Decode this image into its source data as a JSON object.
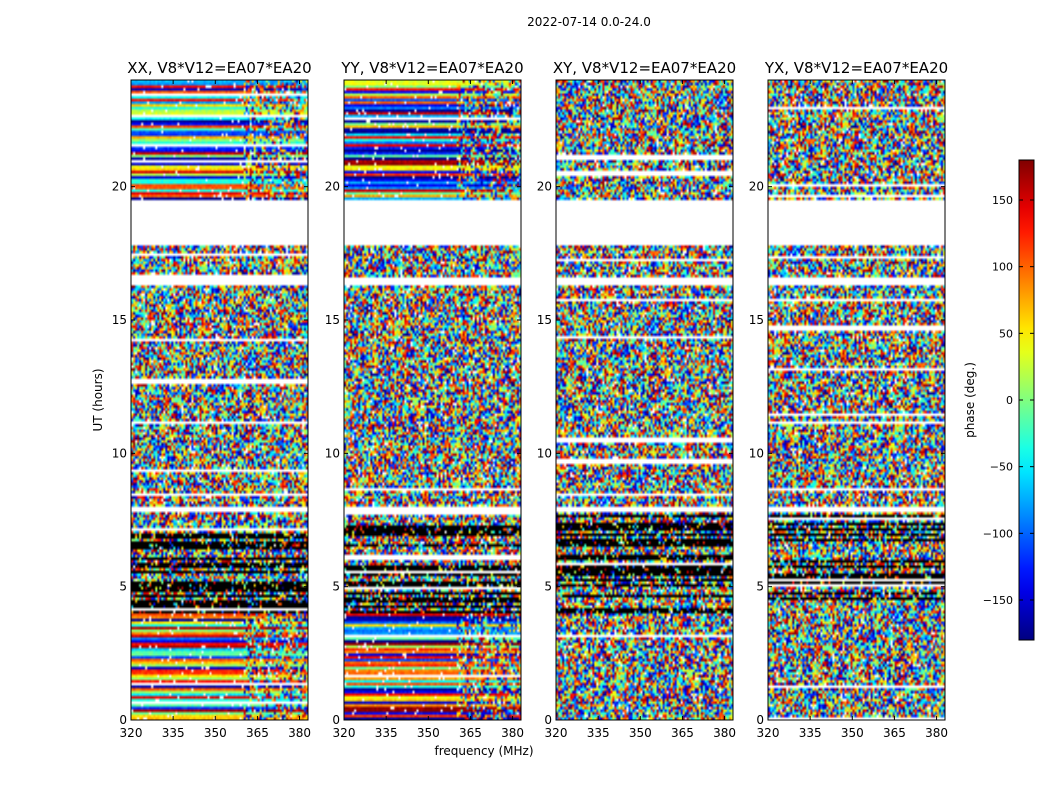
{
  "suptitle": "2022-07-14 0.0-24.0",
  "xlabel": "frequency (MHz)",
  "ylabel": "UT (hours)",
  "colorbar_label": "phase (deg.)",
  "x_ticks": [
    "320",
    "335",
    "350",
    "365",
    "380"
  ],
  "y_ticks": [
    "0",
    "5",
    "10",
    "15",
    "20"
  ],
  "colorbar_ticks": [
    "150",
    "100",
    "50",
    "0",
    "−50",
    "−100",
    "−150"
  ],
  "chart_data": {
    "type": "heatmap",
    "colormap": "jet",
    "panels": [
      {
        "title": "XX, V8*V12=EA07*EA20"
      },
      {
        "title": "YY, V8*V12=EA07*EA20"
      },
      {
        "title": "XY, V8*V12=EA07*EA20"
      },
      {
        "title": "YX, V8*V12=EA07*EA20"
      }
    ],
    "xlim": [
      320,
      383
    ],
    "ylim": [
      0,
      24
    ],
    "x_tick_values": [
      320,
      335,
      350,
      365,
      380
    ],
    "y_tick_values": [
      0,
      5,
      10,
      15,
      20
    ],
    "colorbar_range": [
      -180,
      180
    ],
    "colorbar_tick_values": [
      150,
      100,
      50,
      0,
      -50,
      -100,
      -150
    ],
    "gaps_hours": [
      [
        19.5,
        17.8
      ],
      [
        16.6,
        16.35
      ],
      [
        8.0,
        7.8
      ]
    ],
    "grid": false
  }
}
